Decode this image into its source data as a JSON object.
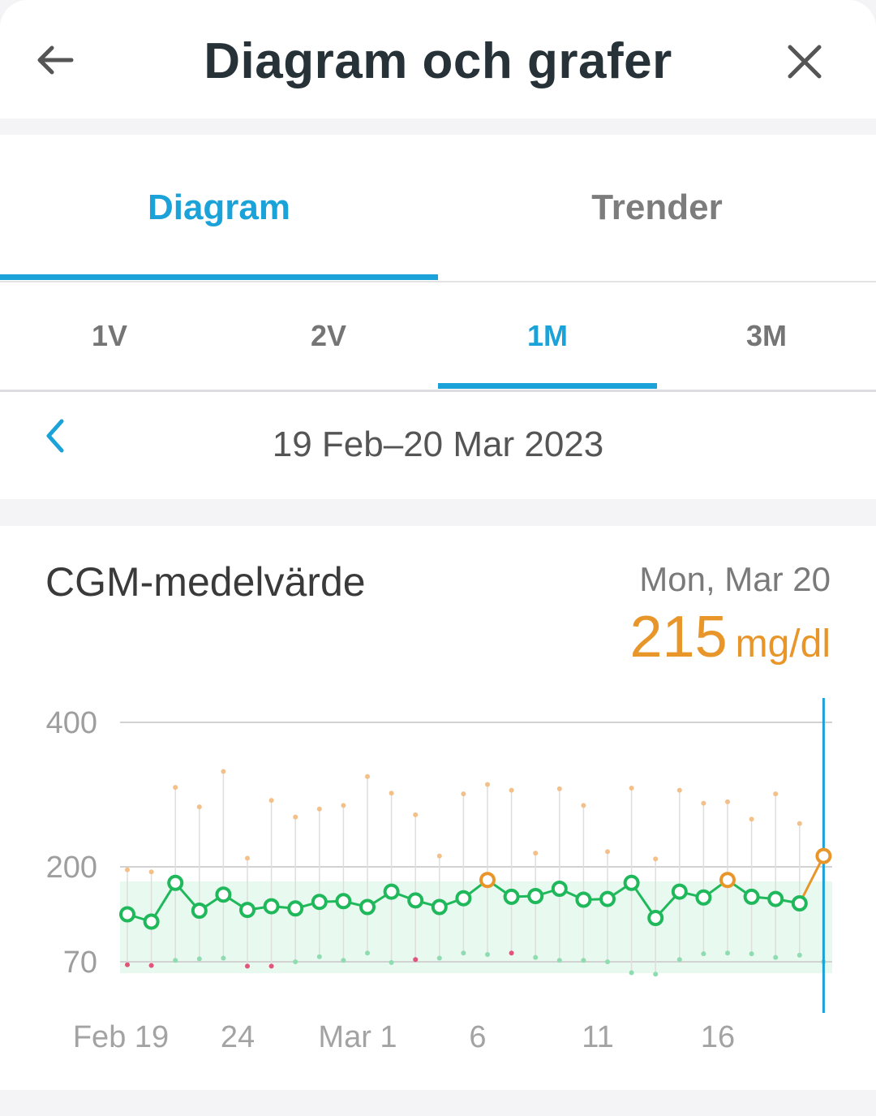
{
  "header": {
    "title": "Diagram och grafer",
    "back_icon": "arrow-left-icon",
    "close_icon": "close-icon"
  },
  "tabs": [
    {
      "label": "Diagram",
      "active": true
    },
    {
      "label": "Trender",
      "active": false
    }
  ],
  "ranges": [
    {
      "label": "1V",
      "active": false
    },
    {
      "label": "2V",
      "active": false
    },
    {
      "label": "1M",
      "active": true
    },
    {
      "label": "3M",
      "active": false
    }
  ],
  "date_nav": {
    "prev_icon": "chevron-left-icon",
    "range_text": "19 Feb–20 Mar 2023"
  },
  "colors": {
    "accent": "#1ba3d9",
    "in_range": "#1fb85a",
    "high": "#e8962a",
    "low": "#e0557a",
    "target_band": "#e8f9ef"
  },
  "card": {
    "title": "CGM-medelvärde",
    "selected_date": "Mon, Mar 20",
    "selected_value": "215",
    "selected_unit": "mg/dl"
  },
  "chart_data": {
    "type": "line",
    "y_ticks": [
      "400",
      "200",
      "70"
    ],
    "x_ticks": [
      "Feb 19",
      "24",
      "Mar 1",
      "6",
      "11",
      "16"
    ],
    "target_range": [
      70,
      180
    ],
    "selected_index": 29,
    "x": [
      "Feb 19",
      "Feb 20",
      "Feb 21",
      "Feb 22",
      "Feb 23",
      "Feb 24",
      "Feb 25",
      "Feb 26",
      "Feb 27",
      "Feb 28",
      "Mar 1",
      "Mar 2",
      "Mar 3",
      "Mar 4",
      "Mar 5",
      "Mar 6",
      "Mar 7",
      "Mar 8",
      "Mar 9",
      "Mar 10",
      "Mar 11",
      "Mar 12",
      "Mar 13",
      "Mar 14",
      "Mar 15",
      "Mar 16",
      "Mar 17",
      "Mar 18",
      "Mar 19",
      "Mar 20"
    ],
    "series": [
      {
        "values": [
          135,
          125,
          178,
          140,
          162,
          141,
          146,
          143,
          152,
          153,
          145,
          166,
          154,
          145,
          157,
          182,
          159,
          160,
          170,
          155,
          156,
          178,
          130,
          166,
          158,
          182,
          159,
          156,
          150,
          215
        ]
      }
    ],
    "daily_max": [
      196,
      193,
      310,
      283,
      332,
      212,
      292,
      269,
      280,
      285,
      325,
      302,
      272,
      215,
      301,
      314,
      306,
      219,
      308,
      285,
      221,
      309,
      211,
      306,
      288,
      290,
      266,
      301,
      260,
      null
    ],
    "daily_min": [
      66,
      65,
      72,
      74,
      75,
      64,
      64,
      70,
      77,
      72,
      82,
      69,
      73,
      75,
      82,
      80,
      82,
      76,
      72,
      72,
      70,
      55,
      53,
      73,
      81,
      82,
      81,
      76,
      79,
      70
    ],
    "min_lows": [
      0,
      1,
      5,
      6,
      12,
      16
    ]
  }
}
